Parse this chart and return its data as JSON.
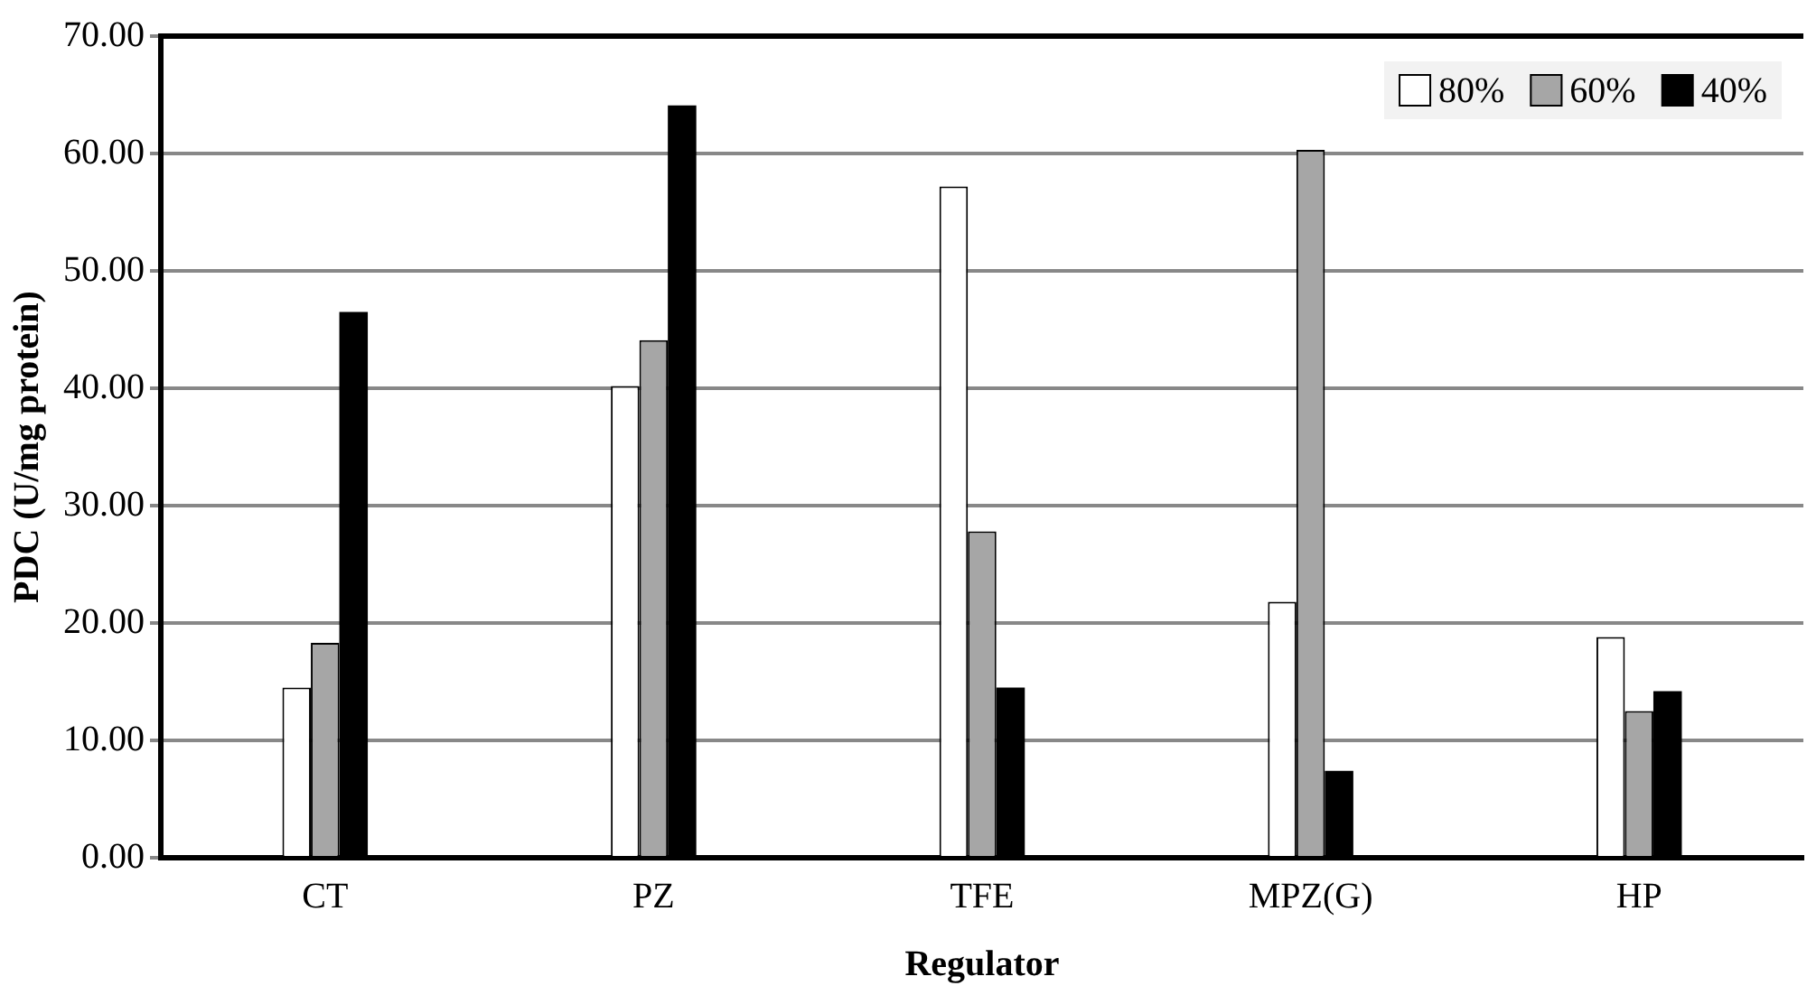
{
  "chart_data": {
    "type": "bar",
    "xlabel": "Regulator",
    "ylabel": "PDC (U/mg protein)",
    "categories": [
      "CT",
      "PZ",
      "TFE",
      "MPZ(G)",
      "HP"
    ],
    "series": [
      {
        "name": "80%",
        "color": "#ffffff",
        "values": [
          14.5,
          40.2,
          57.2,
          21.8,
          18.8
        ]
      },
      {
        "name": "60%",
        "color": "#a6a6a6",
        "values": [
          18.3,
          44.1,
          27.8,
          60.3,
          12.5
        ]
      },
      {
        "name": "40%",
        "color": "#000000",
        "values": [
          46.5,
          64.1,
          14.5,
          7.4,
          14.2
        ]
      }
    ],
    "ylim": [
      0,
      70
    ],
    "yticks": [
      {
        "value": 0,
        "label": "0.00"
      },
      {
        "value": 10,
        "label": "10.00"
      },
      {
        "value": 20,
        "label": "20.00"
      },
      {
        "value": 30,
        "label": "30.00"
      },
      {
        "value": 40,
        "label": "40.00"
      },
      {
        "value": 50,
        "label": "50.00"
      },
      {
        "value": 60,
        "label": "60.00"
      },
      {
        "value": 70,
        "label": "70.00"
      }
    ],
    "grid": "y",
    "legend": "top right"
  }
}
